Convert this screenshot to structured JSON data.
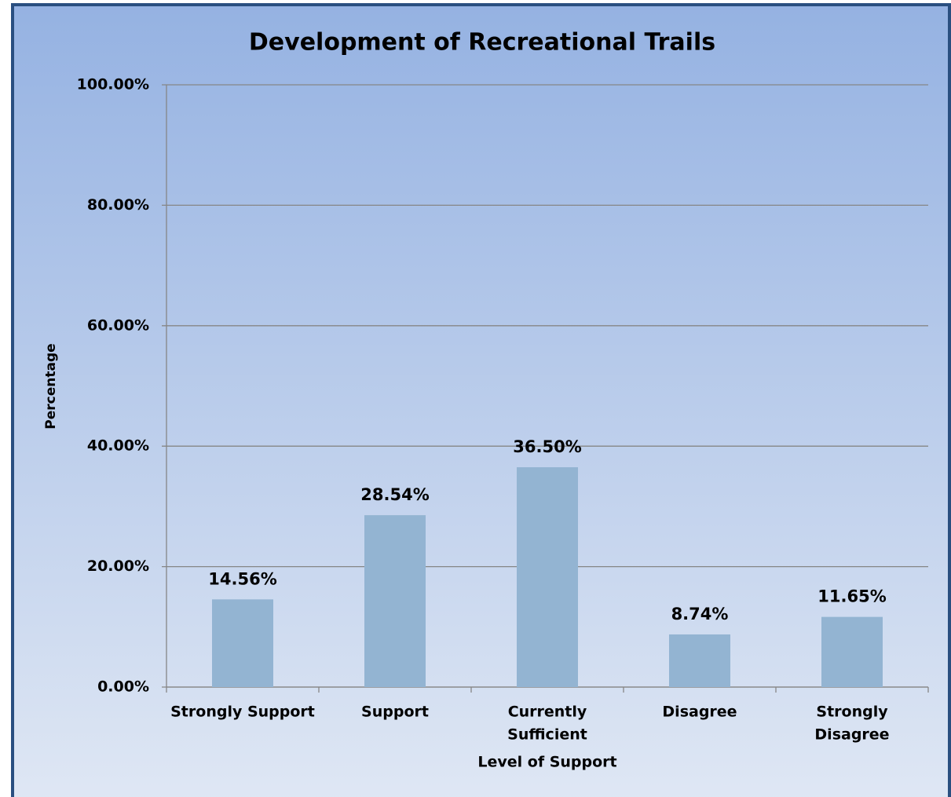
{
  "chart_data": {
    "type": "bar",
    "title": "Development of Recreational Trails",
    "x_label": "Level of Support",
    "y_label": "Percentage",
    "categories": [
      [
        "Strongly Support"
      ],
      [
        "Support"
      ],
      [
        "Currently",
        "Sufficient"
      ],
      [
        "Disagree"
      ],
      [
        "Strongly",
        "Disagree"
      ]
    ],
    "values": [
      14.56,
      28.54,
      36.5,
      8.74,
      11.65
    ],
    "value_labels": [
      "14.56%",
      "28.54%",
      "36.50%",
      "8.74%",
      "11.65%"
    ],
    "color": "#93b4d2",
    "ylim": [
      0,
      100
    ],
    "yticks": [
      {
        "value": 0,
        "label": "0.00%"
      },
      {
        "value": 20,
        "label": "20.00%"
      },
      {
        "value": 40,
        "label": "40.00%"
      },
      {
        "value": 60,
        "label": "60.00%"
      },
      {
        "value": 80,
        "label": "80.00%"
      },
      {
        "value": 100,
        "label": "100.00%"
      }
    ],
    "grid": true
  }
}
